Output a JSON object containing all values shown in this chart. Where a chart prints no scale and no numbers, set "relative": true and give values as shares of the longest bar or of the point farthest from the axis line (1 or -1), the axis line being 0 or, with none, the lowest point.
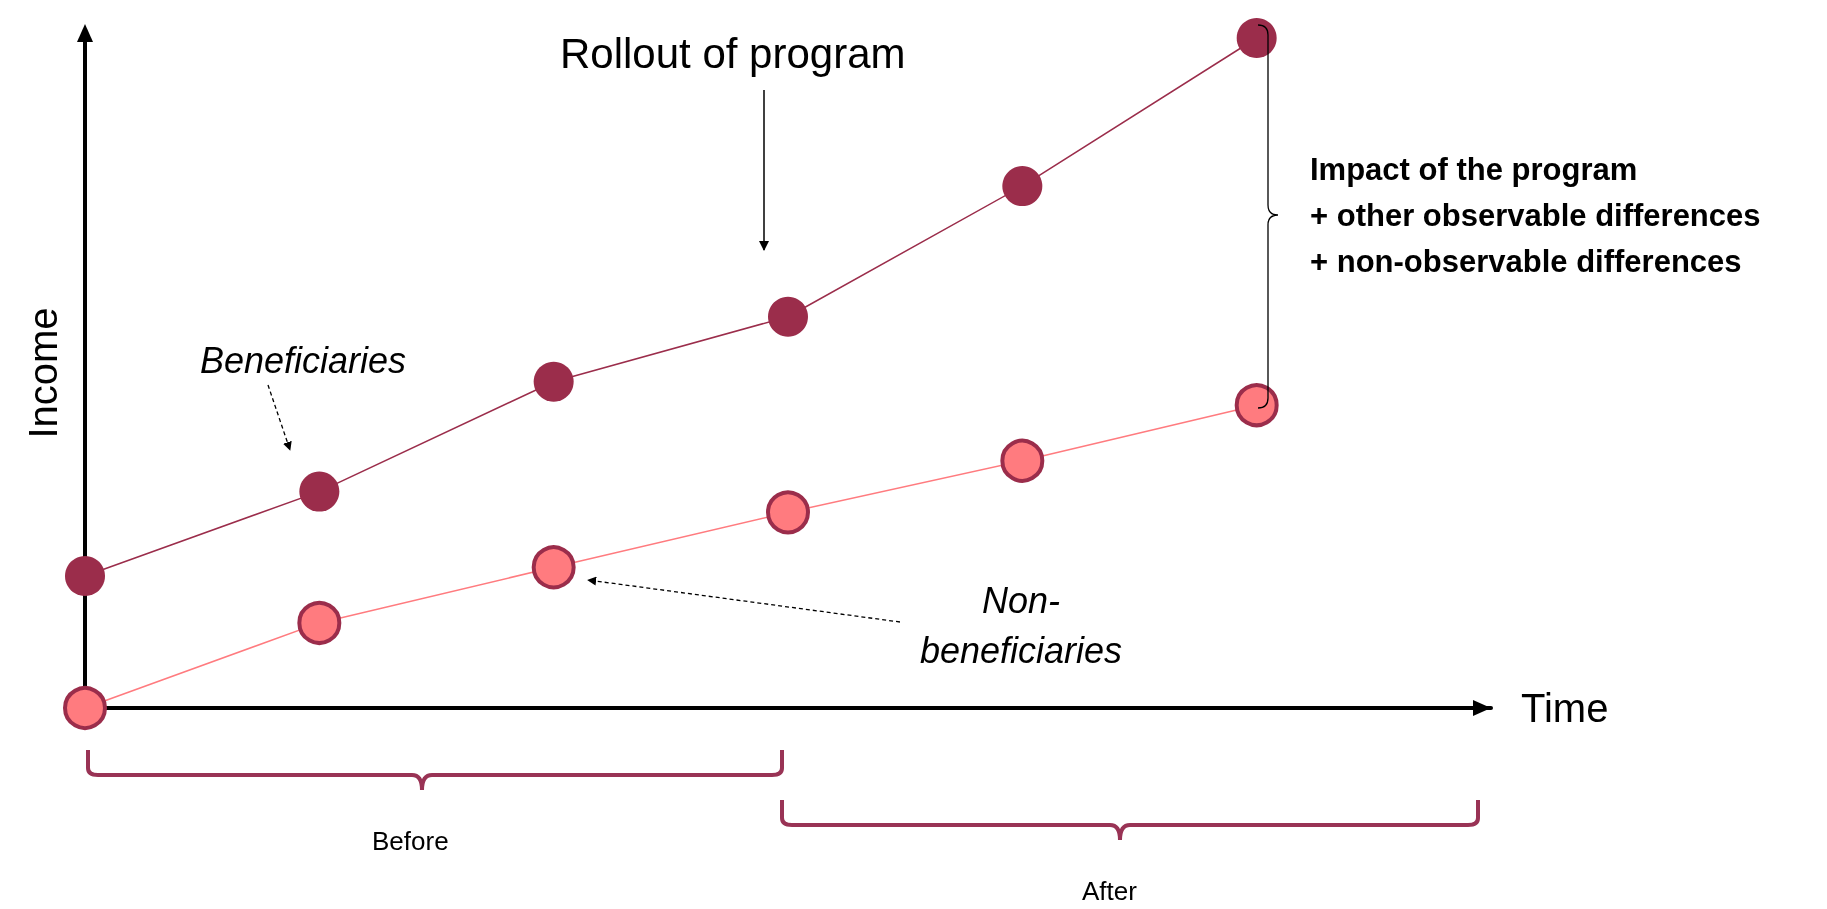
{
  "chart_data": {
    "type": "line",
    "relative": true,
    "xlabel": "Time",
    "ylabel": "Income",
    "categories": [
      null,
      null,
      null,
      null,
      null,
      null,
      null
    ],
    "series": [
      {
        "name": "Beneficiaries",
        "color": "#9b2d4b",
        "values": [
          0.197,
          0.323,
          0.487,
          0.584,
          0.779,
          1,
          null
        ]
      },
      {
        "name": "Non-beneficiaries",
        "color": "#ff7b7f",
        "values": [
          0,
          0.127,
          0.21,
          0.292,
          0.369,
          0.452,
          null
        ]
      }
    ],
    "marker": "circle",
    "line_style": "solid",
    "grid": false,
    "legend": false,
    "annotations": [
      "Rollout of program",
      "Impact of the program\n+ other observable differences\n+ non-observable differences",
      "Before",
      "After"
    ]
  }
}
